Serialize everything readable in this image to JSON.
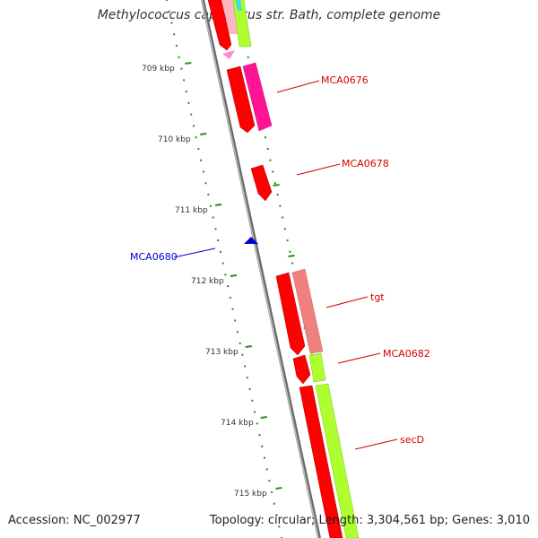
{
  "title": "Methylococcus capsulatus str. Bath, complete genome",
  "accession": "Accession: NC_002977",
  "topology": "Topology: circular; Length: 3,304,561 bp; Genes: 3,010",
  "scale_labels": [
    "709 kbp",
    "710 kbp",
    "711 kbp",
    "712 kbp",
    "713 kbp",
    "714 kbp",
    "715 kbp"
  ],
  "gene_labels": [
    {
      "text": "MCA0676",
      "color": "#d40000"
    },
    {
      "text": "MCA0678",
      "color": "#d40000"
    },
    {
      "text": "MCA0680",
      "color": "#0000cc"
    },
    {
      "text": "tgt",
      "color": "#d40000"
    },
    {
      "text": "MCA0682",
      "color": "#d40000"
    },
    {
      "text": "secD",
      "color": "#d40000"
    }
  ],
  "colors": {
    "cds": "#ff0000",
    "cds_strand2": "#ff1493",
    "cds_pale": "#f08080",
    "trna": "#0000cc",
    "cog_green": "#adff2f",
    "cog_cyan": "#40e0d0",
    "backbone": "#888888",
    "ticks": "#2e8b22"
  }
}
